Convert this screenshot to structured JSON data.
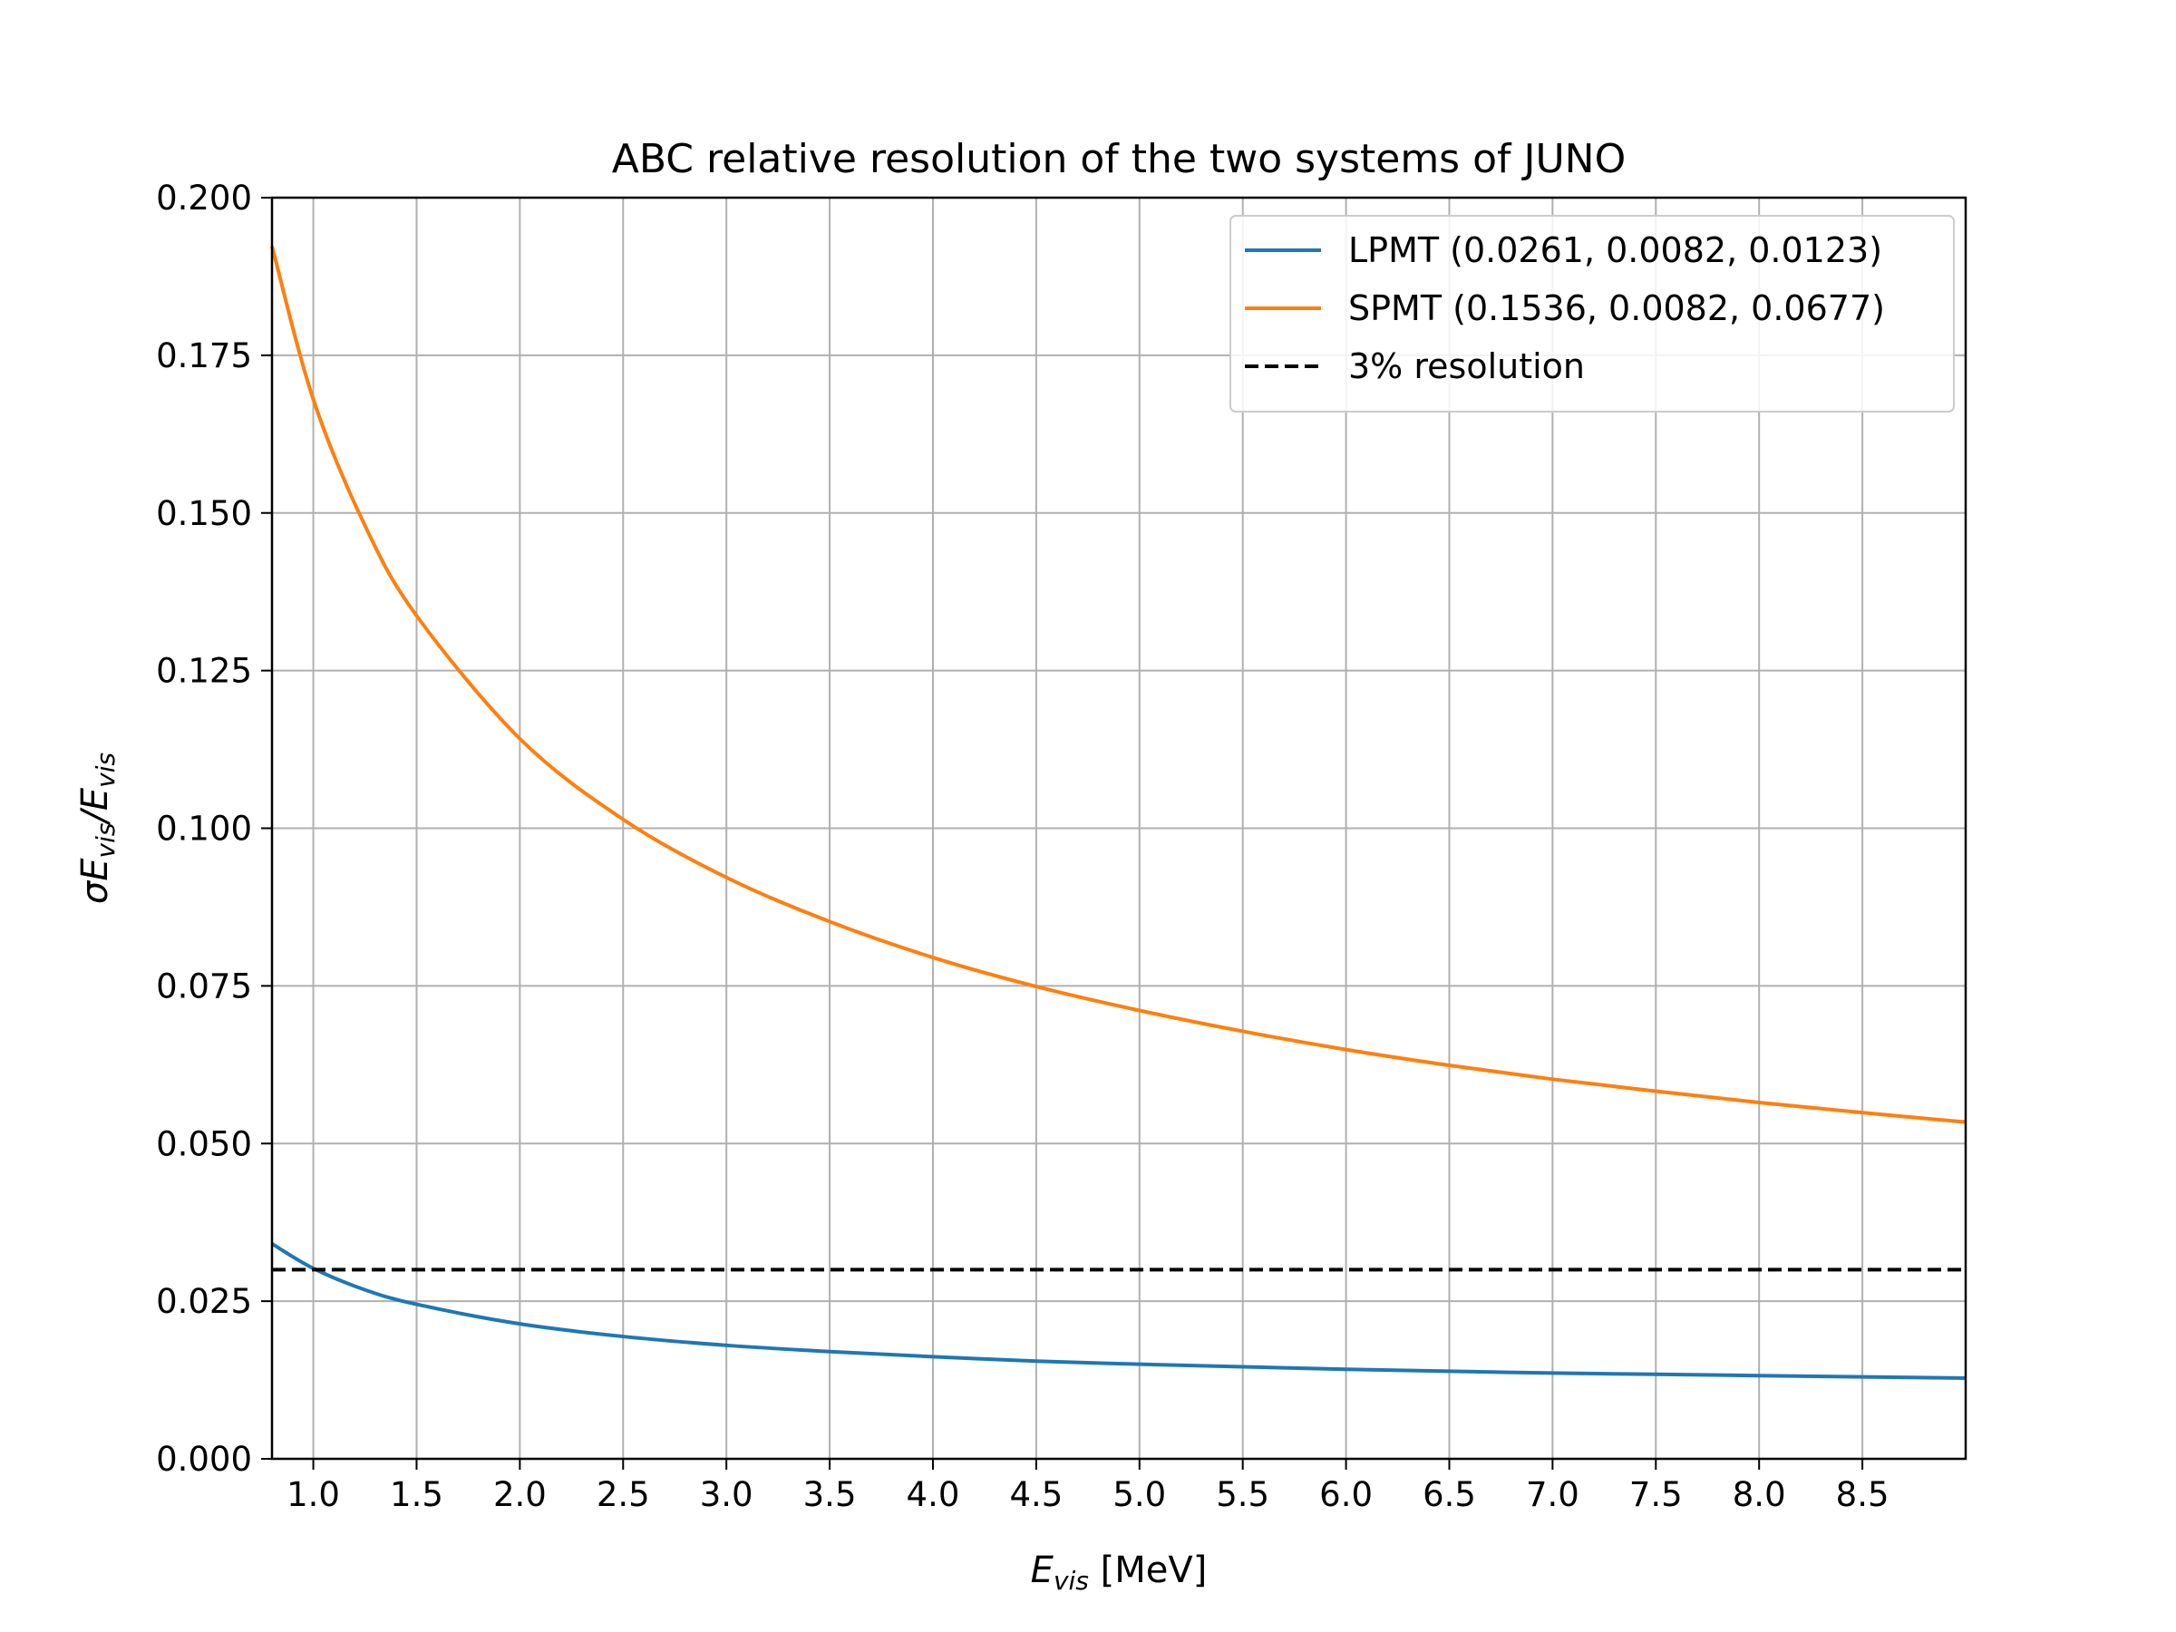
{
  "chart_data": {
    "type": "line",
    "title": "ABC relative resolution of the two systems of JUNO",
    "xlabel": {
      "base": "E",
      "sub": "vis",
      "suffix": " [MeV]"
    },
    "ylabel": {
      "parts": [
        {
          "t": "σE",
          "sub": false
        },
        {
          "t": "vis",
          "sub": true
        },
        {
          "t": "/E",
          "sub": false
        },
        {
          "t": "vis",
          "sub": true
        }
      ]
    },
    "xlim": [
      0.8,
      9.0
    ],
    "ylim": [
      0.0,
      0.2
    ],
    "xticks": [
      1.0,
      1.5,
      2.0,
      2.5,
      3.0,
      3.5,
      4.0,
      4.5,
      5.0,
      5.5,
      6.0,
      6.5,
      7.0,
      7.5,
      8.0,
      8.5
    ],
    "xtick_labels": [
      "1.0",
      "1.5",
      "2.0",
      "2.5",
      "3.0",
      "3.5",
      "4.0",
      "4.5",
      "5.0",
      "5.5",
      "6.0",
      "6.5",
      "7.0",
      "7.5",
      "8.0",
      "8.5"
    ],
    "yticks": [
      0.0,
      0.025,
      0.05,
      0.075,
      0.1,
      0.125,
      0.15,
      0.175,
      0.2
    ],
    "ytick_labels": [
      "0.000",
      "0.025",
      "0.050",
      "0.075",
      "0.100",
      "0.125",
      "0.150",
      "0.175",
      "0.200"
    ],
    "grid": true,
    "legend_position": "top-right",
    "x": [
      0.8,
      1.0,
      1.25,
      1.5,
      2.0,
      2.5,
      3.0,
      3.5,
      4.0,
      4.5,
      5.0,
      5.5,
      6.0,
      6.5,
      7.0,
      7.5,
      8.0,
      8.5,
      9.0
    ],
    "series": [
      {
        "name": "LPMT (0.0261, 0.0082, 0.0123)",
        "color": "#1f77b4",
        "style": "solid",
        "values": [
          0.0341,
          0.0302,
          0.0268,
          0.0245,
          0.0214,
          0.0194,
          0.018,
          0.017,
          0.0162,
          0.0155,
          0.015,
          0.0146,
          0.0142,
          0.0139,
          0.0136,
          0.0134,
          0.0132,
          0.013,
          0.0128
        ]
      },
      {
        "name": "SPMT (0.1536, 0.0082, 0.0677)",
        "color": "#ff7f0e",
        "style": "solid",
        "values": [
          0.1923,
          0.168,
          0.148,
          0.1337,
          0.1142,
          0.1014,
          0.0922,
          0.0852,
          0.0795,
          0.0749,
          0.0711,
          0.0678,
          0.0649,
          0.0624,
          0.0602,
          0.0583,
          0.0565,
          0.0549,
          0.0534
        ]
      },
      {
        "name": "3% resolution",
        "color": "#000000",
        "style": "dashed",
        "values": [
          0.03,
          0.03,
          0.03,
          0.03,
          0.03,
          0.03,
          0.03,
          0.03,
          0.03,
          0.03,
          0.03,
          0.03,
          0.03,
          0.03,
          0.03,
          0.03,
          0.03,
          0.03,
          0.03
        ]
      }
    ]
  }
}
